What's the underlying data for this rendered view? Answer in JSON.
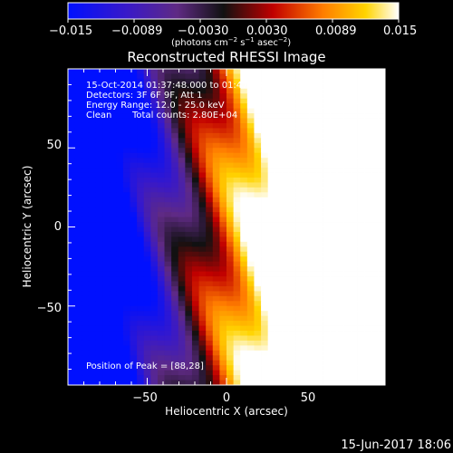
{
  "chart_data": {
    "type": "heatmap",
    "title": "Reconstructed RHESSI Image",
    "xlabel": "Heliocentric X (arcsec)",
    "ylabel": "Heliocentric Y (arcsec)",
    "xlim": [
      -100,
      100
    ],
    "ylim": [
      -100,
      100
    ],
    "x_ticks": [
      "−50",
      "0",
      "50"
    ],
    "y_ticks": [
      "50",
      "0",
      "−50"
    ],
    "colorbar": {
      "range": [
        -0.015,
        0.015
      ],
      "tick_labels": [
        "−0.015",
        "−0.0089",
        "−0.0030",
        "0.0030",
        "0.0089",
        "0.015"
      ],
      "unit_main": "(photons cm",
      "unit_sup1": "−2",
      "unit_mid": " s",
      "unit_sup2": "−1",
      "unit_mid2": " asec",
      "unit_sup3": "−2",
      "unit_end": ")"
    },
    "annotations": {
      "time_range": "15-Oct-2014 01:37:48.000 to 01:47:48.000",
      "detectors": "Detectors: 3F 6F 9F, Att 1",
      "energy": "Energy Range: 12.0 - 25.0 keV",
      "clean": "Clean",
      "counts": "Total counts: 2.80E+04",
      "peak": "Position of Peak = [88,28]"
    },
    "footer_date": "15-Jun-2017 18:06",
    "peak_position": [
      88,
      28
    ],
    "heatmap_model": {
      "grid": [
        46,
        64
      ],
      "gradient_center": -20,
      "gradient_scale": 0.0004,
      "stripe_amplitude": 0.0042,
      "stripe_period": 9.0,
      "stripe_slope": 0.58
    }
  }
}
